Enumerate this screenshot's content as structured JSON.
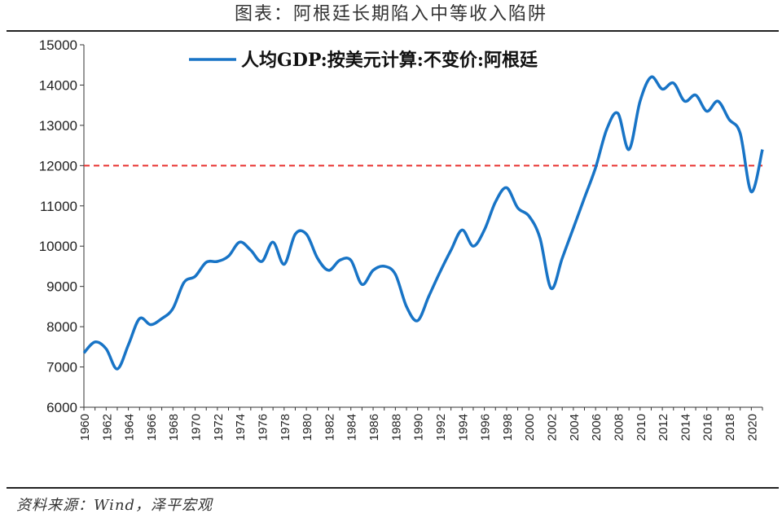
{
  "header": {
    "title": "图表：阿根廷长期陷入中等收入陷阱"
  },
  "footer": {
    "source": "资料来源：Wind，泽平宏观"
  },
  "colors": {
    "series": "#1874c6",
    "threshold": "#e8312f",
    "axis": "#333333"
  },
  "chart_data": {
    "type": "line",
    "title": "",
    "xlabel": "",
    "ylabel": "",
    "ylim": [
      6000,
      15000
    ],
    "yticks": [
      6000,
      7000,
      8000,
      9000,
      10000,
      11000,
      12000,
      13000,
      14000,
      15000
    ],
    "xlim": [
      1960,
      2021
    ],
    "xticks": [
      1960,
      1962,
      1964,
      1966,
      1968,
      1970,
      1972,
      1974,
      1976,
      1978,
      1980,
      1982,
      1984,
      1986,
      1988,
      1990,
      1992,
      1994,
      1996,
      1998,
      2000,
      2002,
      2004,
      2006,
      2008,
      2010,
      2012,
      2014,
      2016,
      2018,
      2020
    ],
    "grid": false,
    "legend": "top-center",
    "reference_line": {
      "y": 12000,
      "style": "dashed"
    },
    "series": [
      {
        "name": "人均GDP:按美元计算:不变价:阿根廷",
        "x": [
          1960,
          1961,
          1962,
          1963,
          1964,
          1965,
          1966,
          1967,
          1968,
          1969,
          1970,
          1971,
          1972,
          1973,
          1974,
          1975,
          1976,
          1977,
          1978,
          1979,
          1980,
          1981,
          1982,
          1983,
          1984,
          1985,
          1986,
          1987,
          1988,
          1989,
          1990,
          1991,
          1992,
          1993,
          1994,
          1995,
          1996,
          1997,
          1998,
          1999,
          2000,
          2001,
          2002,
          2003,
          2004,
          2005,
          2006,
          2007,
          2008,
          2009,
          2010,
          2011,
          2012,
          2013,
          2014,
          2015,
          2016,
          2017,
          2018,
          2019,
          2020,
          2021
        ],
        "y": [
          7350,
          7620,
          7450,
          6950,
          7550,
          8200,
          8050,
          8200,
          8450,
          9100,
          9250,
          9600,
          9620,
          9750,
          10100,
          9900,
          9620,
          10100,
          9550,
          10300,
          10300,
          9700,
          9400,
          9650,
          9650,
          9050,
          9400,
          9500,
          9300,
          8500,
          8150,
          8750,
          9350,
          9900,
          10400,
          10000,
          10400,
          11100,
          11450,
          10950,
          10750,
          10200,
          8950,
          9700,
          10450,
          11200,
          11950,
          12900,
          13300,
          12400,
          13600,
          14200,
          13900,
          14050,
          13600,
          13750,
          13350,
          13600,
          13150,
          12800,
          11350,
          12400
        ]
      }
    ]
  }
}
